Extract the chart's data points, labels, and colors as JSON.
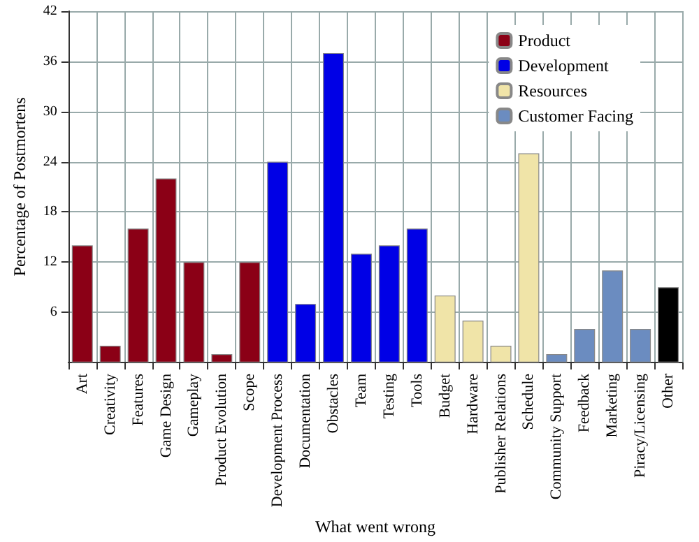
{
  "chart_data": {
    "type": "bar",
    "xlabel": "What went wrong",
    "ylabel": "Percentage of Postmortens",
    "categories": [
      "Art",
      "Creativity",
      "Features",
      "Game Design",
      "Gameplay",
      "Product Evolution",
      "Scope",
      "Development Process",
      "Documentation",
      "Obstacles",
      "Team",
      "Testing",
      "Tools",
      "Budget",
      "Hardware",
      "Publisher Relations",
      "Schedule",
      "Community Support",
      "Feedback",
      "Marketing",
      "Piracy/Licensing",
      "Other"
    ],
    "series": [
      {
        "name": "Product",
        "color": "#8b0016",
        "values": [
          14,
          2,
          16,
          22,
          12,
          1,
          12,
          null,
          null,
          null,
          null,
          null,
          null,
          null,
          null,
          null,
          null,
          null,
          null,
          null,
          null,
          null
        ]
      },
      {
        "name": "Development",
        "color": "#0000e6",
        "values": [
          null,
          null,
          null,
          null,
          null,
          null,
          null,
          24,
          7,
          37,
          13,
          14,
          16,
          null,
          null,
          null,
          null,
          null,
          null,
          null,
          null,
          null
        ]
      },
      {
        "name": "Resources",
        "color": "#f0e4a8",
        "values": [
          null,
          null,
          null,
          null,
          null,
          null,
          null,
          null,
          null,
          null,
          null,
          null,
          null,
          8,
          5,
          2,
          25,
          null,
          null,
          null,
          null,
          null
        ]
      },
      {
        "name": "Customer Facing",
        "color": "#6b8cc0",
        "values": [
          null,
          null,
          null,
          null,
          null,
          null,
          null,
          null,
          null,
          null,
          null,
          null,
          null,
          null,
          null,
          null,
          null,
          1,
          4,
          11,
          4,
          null
        ]
      },
      {
        "color": "#000000",
        "values": [
          null,
          null,
          null,
          null,
          null,
          null,
          null,
          null,
          null,
          null,
          null,
          null,
          null,
          null,
          null,
          null,
          null,
          null,
          null,
          null,
          null,
          9
        ]
      }
    ],
    "ylim": [
      0,
      42
    ],
    "yticks": [
      6,
      12,
      18,
      24,
      30,
      36,
      42
    ],
    "grid": true,
    "legend": "top right",
    "stacked": true
  }
}
